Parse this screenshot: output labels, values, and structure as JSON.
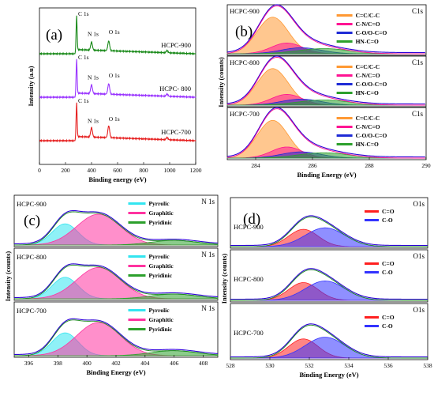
{
  "chart_data": [
    {
      "id": "a",
      "type": "line",
      "panel_label": "(a)",
      "xlabel": "Binding energy (eV)",
      "ylabel": "Intensity (a.u)",
      "xlim": [
        0,
        1200
      ],
      "xticks": [
        "0",
        "200",
        "400",
        "600",
        "800",
        "1000",
        "1200"
      ],
      "peak_labels": [
        "C 1s",
        "N 1s",
        "O 1s"
      ],
      "peak_positions": [
        285,
        400,
        532
      ],
      "series": [
        {
          "name": "HCPC-900",
          "color": "#1a8a1a",
          "peaks": [
            {
              "x": 285,
              "h": 1.0
            },
            {
              "x": 400,
              "h": 0.22
            },
            {
              "x": 532,
              "h": 0.28
            },
            {
              "x": 980,
              "h": 0.06
            }
          ]
        },
        {
          "name": "HCPC- 800",
          "color": "#9933ff",
          "peaks": [
            {
              "x": 285,
              "h": 1.0
            },
            {
              "x": 400,
              "h": 0.24
            },
            {
              "x": 532,
              "h": 0.3
            },
            {
              "x": 980,
              "h": 0.06
            }
          ]
        },
        {
          "name": "HCPC-700",
          "color": "#e62020",
          "peaks": [
            {
              "x": 285,
              "h": 1.0
            },
            {
              "x": 400,
              "h": 0.26
            },
            {
              "x": 532,
              "h": 0.34
            },
            {
              "x": 980,
              "h": 0.06
            }
          ]
        }
      ]
    },
    {
      "id": "b",
      "type": "area",
      "panel_label": "(b)",
      "xlabel": "Binding  Energy (eV)",
      "ylabel": "Intensity (counts)",
      "xlim": [
        283,
        290
      ],
      "xticks": [
        "284",
        "286",
        "288",
        "290"
      ],
      "subpanels": [
        {
          "sample": "HCPC-900",
          "core": "C1s"
        },
        {
          "sample": "HCPC-800",
          "core": "C1s"
        },
        {
          "sample": "HCPC-700",
          "core": "C1s"
        }
      ],
      "components": [
        {
          "name": "C=C/C-C",
          "color": "#ff9933",
          "center": 284.6,
          "width": 0.55,
          "amp": 0.85
        },
        {
          "name": "C-N/C=O",
          "color": "#ff1493",
          "center": 285.1,
          "width": 0.55,
          "amp": 0.25
        },
        {
          "name": "C-O/O-C=O",
          "color": "#1f2bd6",
          "center": 285.6,
          "width": 0.7,
          "amp": 0.14
        },
        {
          "name": "HN-C=O",
          "color": "#2ca02c",
          "center": 286.4,
          "width": 0.9,
          "amp": 0.12
        }
      ]
    },
    {
      "id": "c",
      "type": "area",
      "panel_label": "(c)",
      "xlabel": "Binding Energy (eV)",
      "ylabel": "Intensity (counts)",
      "xlim": [
        395,
        409
      ],
      "xticks": [
        "396",
        "398",
        "400",
        "402",
        "404",
        "406",
        "408"
      ],
      "subpanels": [
        {
          "sample": "HCPC-900",
          "core": "N 1s"
        },
        {
          "sample": "HCPC-800",
          "core": "N 1s"
        },
        {
          "sample": "HCPC-700",
          "core": "N 1s"
        }
      ],
      "components": [
        {
          "name": "Pyrrolic",
          "color": "#33e5f0",
          "center": 398.5,
          "width": 0.9,
          "amp": 0.55
        },
        {
          "name": "Graphitic",
          "color": "#ff33a0",
          "center": 400.8,
          "width": 1.5,
          "amp": 0.8
        },
        {
          "name": "Pyridinic",
          "color": "#2ca02c",
          "center": 406.0,
          "width": 1.6,
          "amp": 0.12
        }
      ]
    },
    {
      "id": "d",
      "type": "area",
      "panel_label": "(d)",
      "xlabel": "Binding Energy (eV)",
      "ylabel": "Intensity (counts)",
      "xlim": [
        528,
        538
      ],
      "xticks": [
        "528",
        "530",
        "532",
        "534",
        "536",
        "538"
      ],
      "subpanels": [
        {
          "sample": "HCPC-900",
          "core": "O1s"
        },
        {
          "sample": "HCPC-800",
          "core": "O1s"
        },
        {
          "sample": "HCPC-700",
          "core": "O1s"
        }
      ],
      "components": [
        {
          "name": "C=O",
          "color": "#ff2020",
          "center": 531.7,
          "width": 0.75,
          "amp": 0.55
        },
        {
          "name": "C-O",
          "color": "#3333ff",
          "center": 532.8,
          "width": 1.0,
          "amp": 0.6
        }
      ]
    }
  ]
}
